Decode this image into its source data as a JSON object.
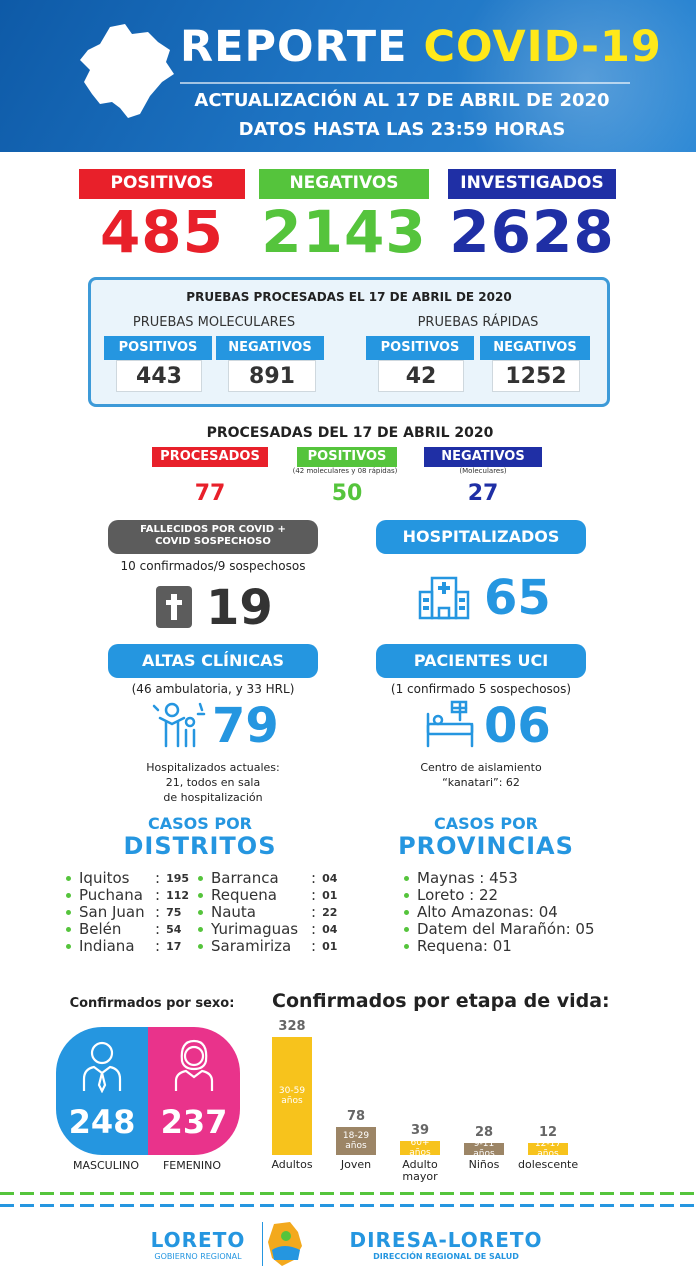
{
  "header": {
    "title_a": "REPORTE",
    "title_b": "COVID-19",
    "subtitle": "ACTUALIZACIÓN AL 17 DE ABRIL DE 2020",
    "subtitle2": "DATOS HASTA LAS 23:59 HORAS"
  },
  "totals": [
    {
      "label": "POSITIVOS",
      "value": "485",
      "color": "#e8202a"
    },
    {
      "label": "NEGATIVOS",
      "value": "2143",
      "color": "#55c43c"
    },
    {
      "label": "INVESTIGADOS",
      "value": "2628",
      "color": "#1f2fa5"
    }
  ],
  "pruebas": {
    "title": "PRUEBAS PROCESADAS EL 17 DE ABRIL  DE 2020",
    "moleculares": {
      "label": "PRUEBAS MOLECULARES",
      "pos_label": "POSITIVOS",
      "neg_label": "NEGATIVOS",
      "pos": "443",
      "neg": "891"
    },
    "rapidas": {
      "label": "PRUEBAS RÁPIDAS",
      "pos_label": "POSITIVOS",
      "neg_label": "NEGATIVOS",
      "pos": "42",
      "neg": "1252"
    }
  },
  "procesadas": {
    "title": "PROCESADAS DEL 17 DE ABRIL 2020",
    "items": [
      {
        "label": "PROCESADOS",
        "note": "",
        "value": "77",
        "color": "#e8202a"
      },
      {
        "label": "POSITIVOS",
        "note": "(42 moleculares y 08 rápidas)",
        "value": "50",
        "color": "#55c43c"
      },
      {
        "label": "NEGATIVOS",
        "note": "(Moleculares)",
        "value": "27",
        "color": "#1f2fa5"
      }
    ]
  },
  "fallecidos": {
    "label": "FALLECIDOS POR COVID + COVID SOSPECHOSO",
    "note": "10 confirmados/9 sospechosos",
    "value": "19"
  },
  "hospitalizados": {
    "label": "HOSPITALIZADOS",
    "value": "65"
  },
  "altas": {
    "label": "ALTAS CLÍNICAS",
    "note": "(46 ambulatoria, y 33 HRL)",
    "value": "79",
    "footnote_1": "Hospitalizados actuales:",
    "footnote_2": "21, todos en sala",
    "footnote_3": "de hospitalización"
  },
  "uci": {
    "label": "PACIENTES UCI",
    "note": "(1 confirmado 5 sospechosos)",
    "value": "06",
    "footnote_1": "Centro de aislamiento",
    "footnote_2": "“kanatari”:  62"
  },
  "distritos": {
    "small": "CASOS POR",
    "big": "DISTRITOS",
    "col1": [
      {
        "name": "Iquitos",
        "count": "195"
      },
      {
        "name": "Puchana",
        "count": "112"
      },
      {
        "name": "San Juan",
        "count": "75"
      },
      {
        "name": "Belén",
        "count": "54"
      },
      {
        "name": "Indiana",
        "count": "17"
      }
    ],
    "col2": [
      {
        "name": "Barranca",
        "count": "04"
      },
      {
        "name": "Requena",
        "count": "01"
      },
      {
        "name": "Nauta",
        "count": "22"
      },
      {
        "name": "Yurimaguas",
        "count": "04"
      },
      {
        "name": "Saramiriza",
        "count": "01"
      }
    ]
  },
  "provincias": {
    "small": "CASOS POR",
    "big": "PROVINCIAS",
    "items": [
      "Maynas : 453",
      "Loreto  :  22",
      "Alto Amazonas: 04",
      "Datem del Marañón: 05",
      "Requena: 01"
    ]
  },
  "sexo": {
    "title": "Confirmados por sexo:",
    "masculino": "248",
    "femenino": "237",
    "masc_label": "MASCULINO",
    "fem_label": "FEMENINO"
  },
  "chart_data": {
    "type": "bar",
    "title": "Confirmados por etapa de vida:",
    "categories": [
      "Adultos",
      "Joven",
      "Adulto mayor",
      "Niños",
      "Adolescente"
    ],
    "category_display": [
      "Adultos",
      "Joven",
      "Adulto\nmayor",
      "Niños",
      "dolescente"
    ],
    "values": [
      328,
      78,
      39,
      28,
      12
    ],
    "inner_labels": [
      "30-59 años",
      "18-29 años",
      "60+ años",
      "9-11 años",
      "12-17 años"
    ],
    "colors": [
      "#f7c31c",
      "#9c8566",
      "#f7c31c",
      "#9c8566",
      "#f7c31c"
    ],
    "ylim": [
      0,
      328
    ]
  },
  "footer": {
    "left_brand": "LORETO",
    "left_sub": "GOBIERNO REGIONAL",
    "right_brand": "DIRESA-LORETO",
    "right_sub": "DIRECCIÓN REGIONAL DE SALUD",
    "dash_colors": [
      "#55c43c",
      "#2596e0"
    ]
  }
}
